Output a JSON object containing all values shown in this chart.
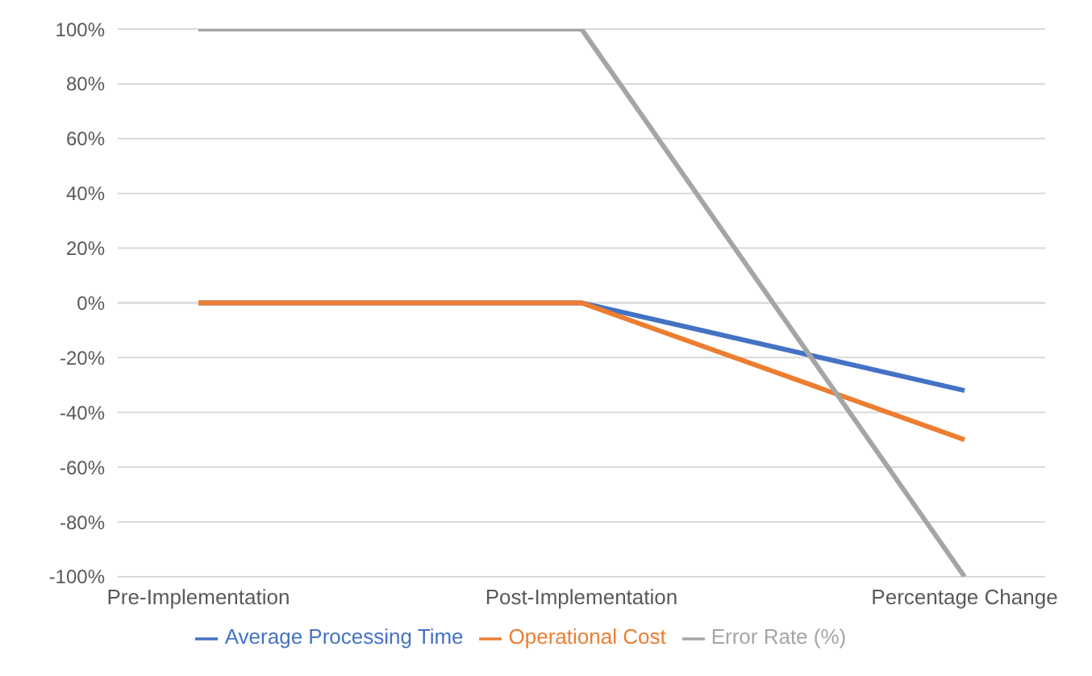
{
  "chart_data": {
    "type": "line",
    "categories": [
      "Pre-Implementation",
      "Post-Implementation",
      "Percentage Change"
    ],
    "series": [
      {
        "name": "Average Processing Time",
        "color": "#4472c4",
        "values": [
          0,
          0,
          -32
        ]
      },
      {
        "name": "Operational Cost",
        "color": "#ed7d31",
        "values": [
          0,
          0,
          -50
        ]
      },
      {
        "name": "Error Rate (%)",
        "color": "#a5a5a5",
        "values": [
          100,
          100,
          -100
        ]
      }
    ],
    "ylim": [
      -100,
      100
    ],
    "yticks": [
      {
        "value": -100,
        "label": "-100%"
      },
      {
        "value": -80,
        "label": "-80%"
      },
      {
        "value": -60,
        "label": "-60%"
      },
      {
        "value": -40,
        "label": "-40%"
      },
      {
        "value": -20,
        "label": "-20%"
      },
      {
        "value": 0,
        "label": "0%"
      },
      {
        "value": 20,
        "label": "20%"
      },
      {
        "value": 40,
        "label": "40%"
      },
      {
        "value": 60,
        "label": "60%"
      },
      {
        "value": 80,
        "label": "80%"
      },
      {
        "value": 100,
        "label": "100%"
      }
    ],
    "grid": "y",
    "legend": "bottom",
    "marker": "none",
    "line_style": "solid"
  }
}
